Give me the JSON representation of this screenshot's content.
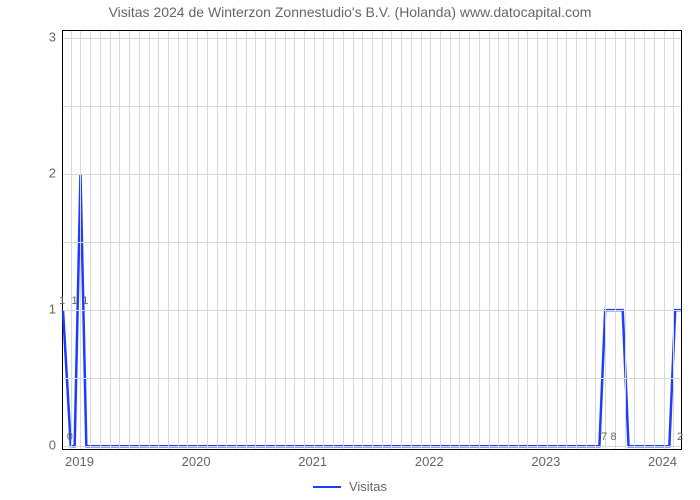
{
  "chart": {
    "type": "line",
    "title": "Visitas 2024 de Winterzon Zonnestudio's B.V. (Holanda) www.datocapital.com",
    "title_fontsize": 14,
    "title_color": "#666666",
    "background_color": "#ffffff",
    "plot_border_color": "#000000",
    "grid_color": "#d9d9d9",
    "line_color": "#1e3cff",
    "line_width": 2.5,
    "x_range": [
      2018.85,
      2024.15
    ],
    "y_range": [
      -0.02,
      3.05
    ],
    "y_ticks": [
      0,
      1,
      2,
      3
    ],
    "x_ticks": [
      {
        "value": 2019,
        "label": "2019"
      },
      {
        "value": 2020,
        "label": "2020"
      },
      {
        "value": 2021,
        "label": "2021"
      },
      {
        "value": 2022,
        "label": "2022"
      },
      {
        "value": 2023,
        "label": "2023"
      },
      {
        "value": 2024,
        "label": "2024"
      }
    ],
    "minor_v_per_major": 12,
    "minor_h": [
      0.5,
      1.5,
      2.5
    ],
    "series": {
      "name": "Visitas",
      "points": [
        [
          2018.85,
          1.0
        ],
        [
          2018.917,
          0.0
        ],
        [
          2018.95,
          0.0
        ],
        [
          2019.0,
          2.0
        ],
        [
          2019.05,
          0.0
        ],
        [
          2023.45,
          0.0
        ],
        [
          2023.5,
          1.0
        ],
        [
          2023.65,
          1.0
        ],
        [
          2023.7,
          0.0
        ],
        [
          2024.05,
          0.0
        ],
        [
          2024.1,
          1.0
        ],
        [
          2024.15,
          1.0
        ]
      ],
      "point_labels": [
        {
          "x": 2018.85,
          "y": 1.0,
          "text": "1"
        },
        {
          "x": 2018.917,
          "y": 0.0,
          "text": "0"
        },
        {
          "x": 2018.958,
          "y": 1.0,
          "text": "1"
        },
        {
          "x": 2019.05,
          "y": 1.0,
          "text": "1"
        },
        {
          "x": 2023.5,
          "y": 0.0,
          "text": "7"
        },
        {
          "x": 2023.58,
          "y": 0.0,
          "text": "8"
        },
        {
          "x": 2024.15,
          "y": 0.0,
          "text": "2"
        }
      ]
    },
    "legend": {
      "label": "Visitas"
    }
  }
}
